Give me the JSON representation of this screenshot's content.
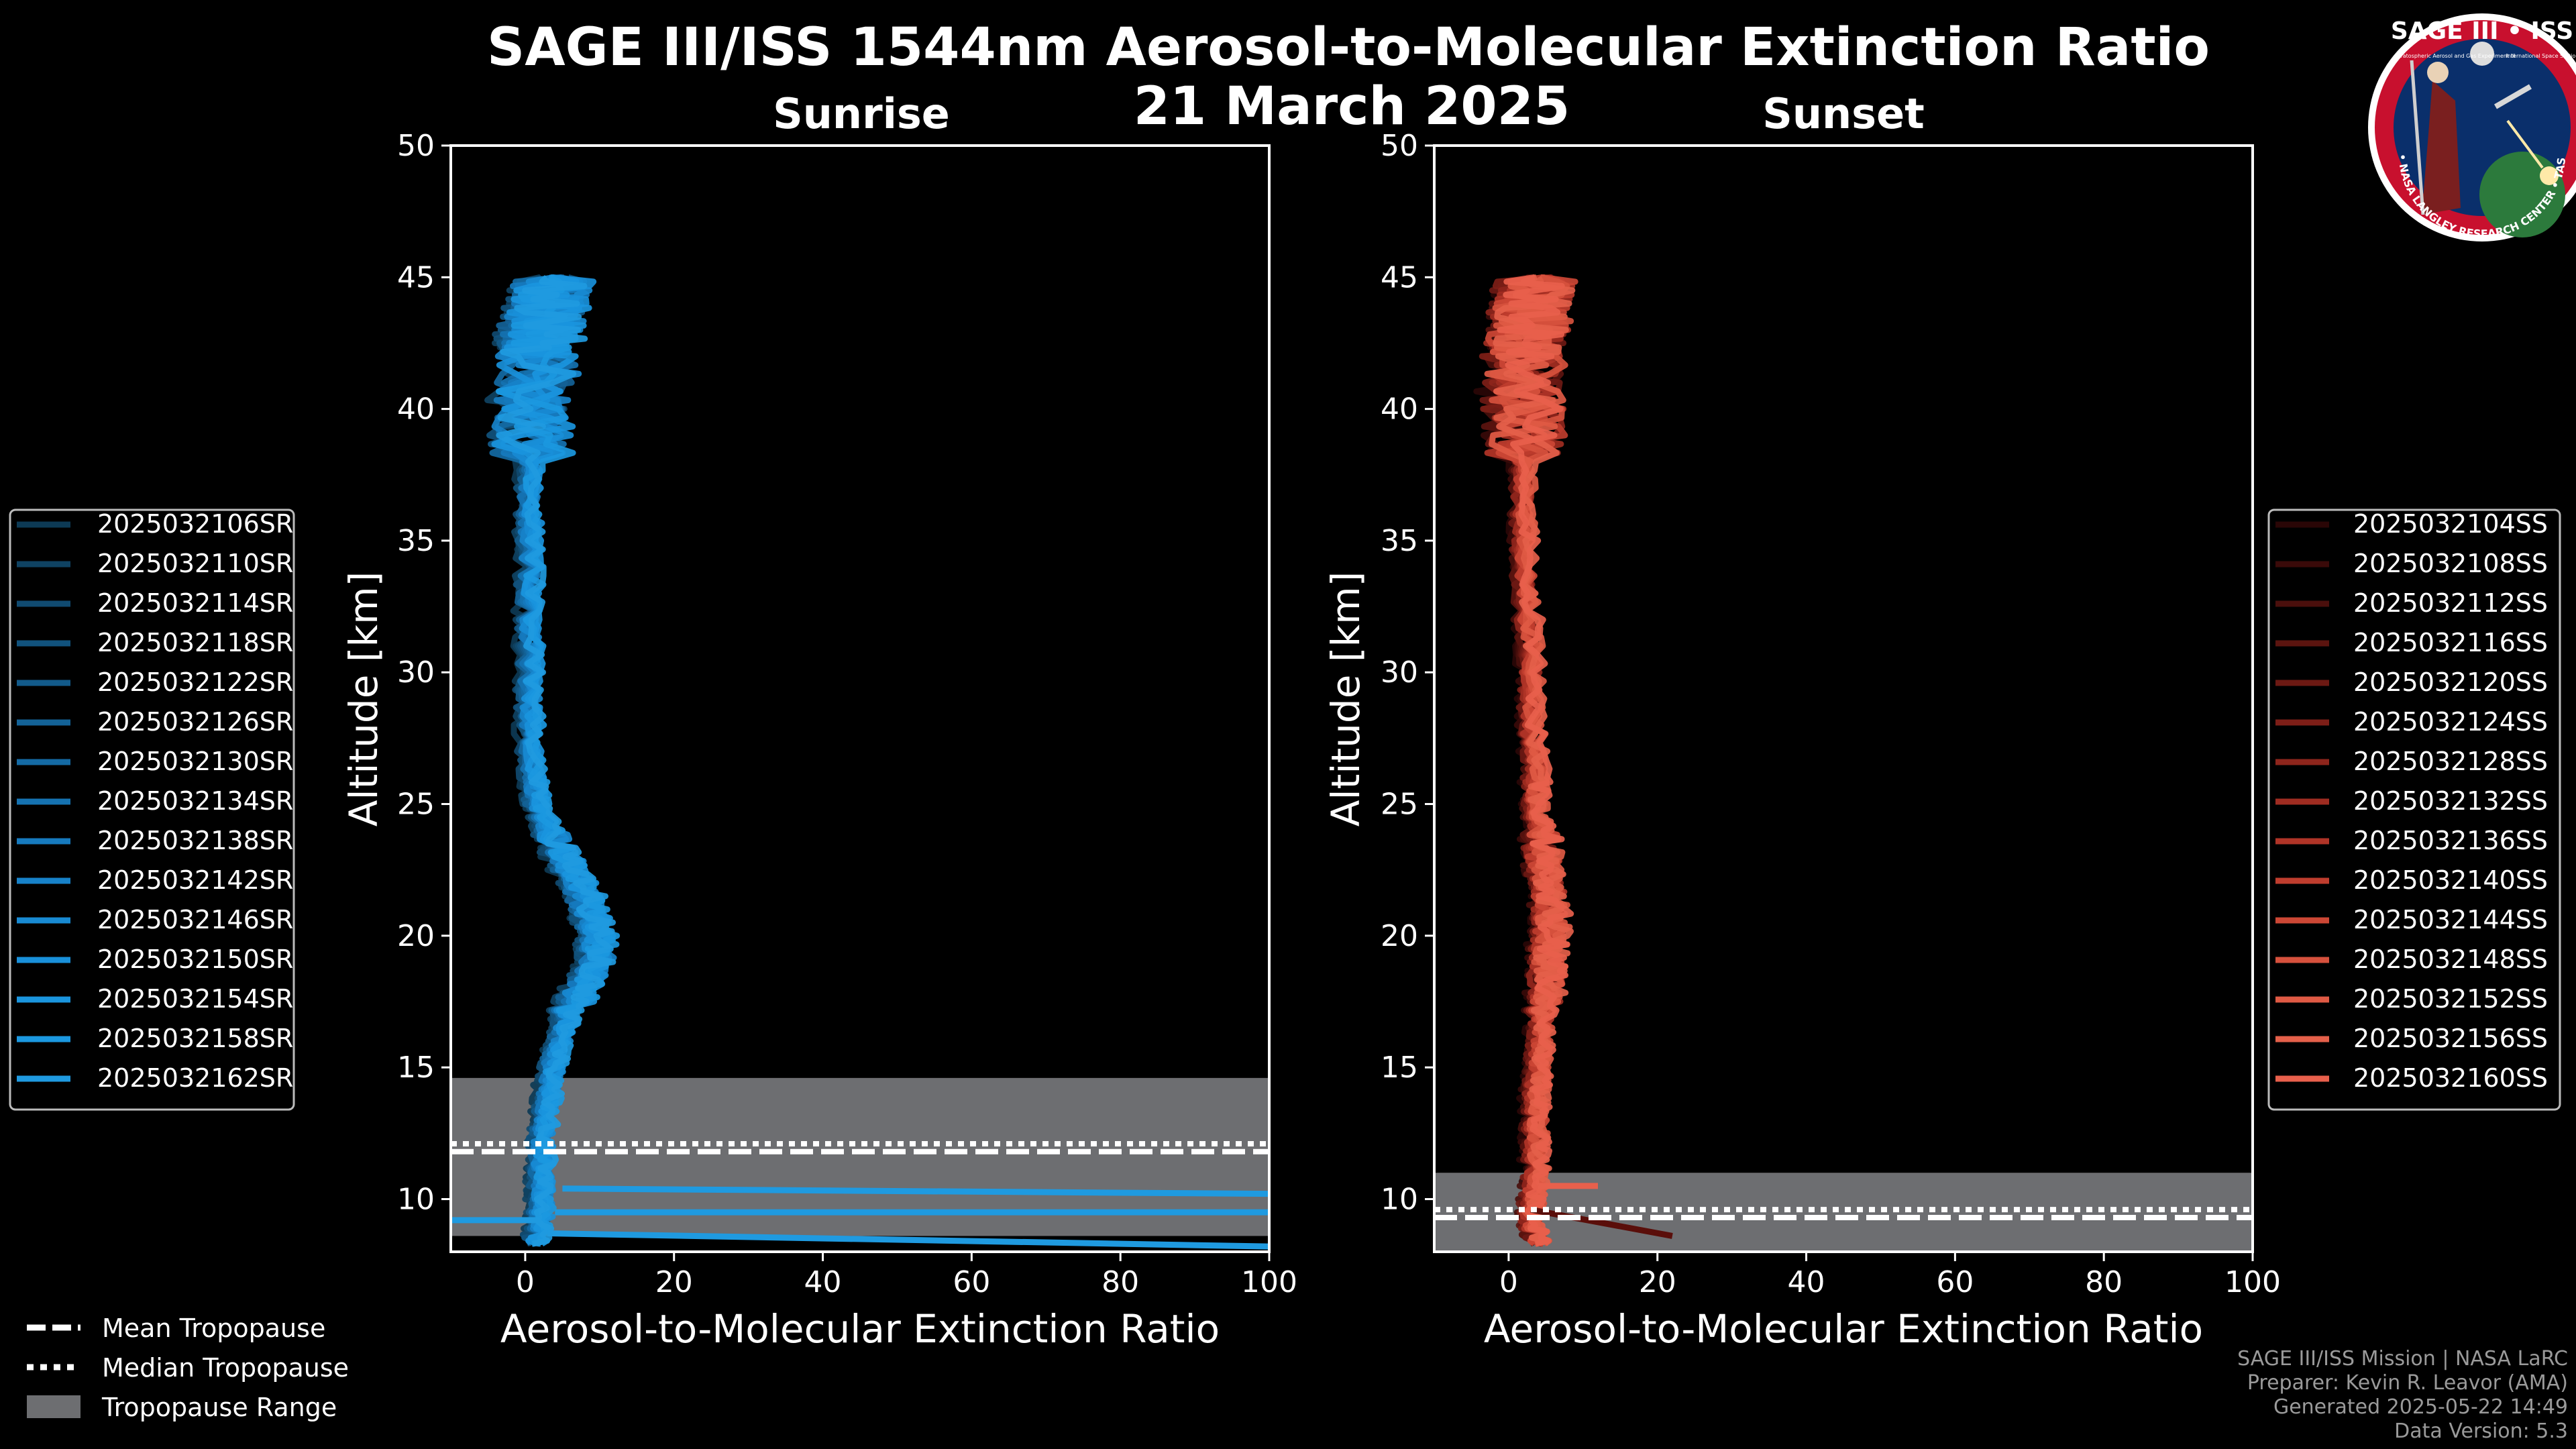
{
  "header": {
    "title": "SAGE III/ISS 1544nm Aerosol-to-Molecular Extinction Ratio",
    "date": "21 March 2025"
  },
  "logo": {
    "title": "SAGE III • ISS",
    "ring_text": "BALL • NASA LANGLEY RESEARCH CENTER • TAS • ESA",
    "subtitle_left": "Stratospheric Aerosol and Gas Experiment III",
    "subtitle_right": "International Space Station",
    "colors": {
      "ring": "#c8102e",
      "field": "#0a2f6b",
      "rim": "#ffffff"
    }
  },
  "colors": {
    "sunrise": "#1f9ae0",
    "sunset": "#e8604c",
    "tropo_range": "#6d6e71",
    "axis": "#ffffff",
    "background": "#000000",
    "legend_border": "#bbbbbb"
  },
  "legend_tropopause": {
    "mean": "Mean Tropopause",
    "median": "Median Tropopause",
    "range": "Tropopause Range"
  },
  "credits": {
    "line1": "SAGE III/ISS Mission | NASA LaRC",
    "line2": "Preparer: Kevin R. Leavor (AMA)",
    "line3": "Generated 2025-05-22 14:49",
    "line4": "Data Version: 5.3"
  },
  "chart_data": [
    {
      "type": "line",
      "title": "Sunrise",
      "xlabel": "Aerosol-to-Molecular Extinction Ratio",
      "ylabel": "Altitude [km]",
      "xlim": [
        -10,
        100
      ],
      "ylim": [
        8,
        50
      ],
      "xticks": [
        0,
        20,
        40,
        60,
        80,
        100
      ],
      "yticks": [
        10,
        15,
        20,
        25,
        30,
        35,
        40,
        45
      ],
      "tropopause": {
        "mean": 11.8,
        "median": 12.1,
        "range": [
          8.6,
          14.6
        ]
      },
      "profile_altitudes_km": [
        8.3,
        9,
        10,
        11,
        12,
        13,
        14,
        15,
        16,
        17,
        18,
        19,
        20,
        21,
        22,
        23,
        24,
        25,
        26,
        28,
        30,
        32,
        34,
        36,
        38,
        40,
        42,
        43,
        44,
        45
      ],
      "mean_profile_ratio": [
        1,
        2,
        2,
        2,
        2,
        2.5,
        3,
        3.5,
        4.5,
        5.5,
        7.5,
        9.5,
        9.5,
        8.5,
        7,
        5,
        3,
        1.5,
        1,
        0.5,
        0.5,
        0.5,
        0.5,
        0.5,
        0.5,
        1,
        1.5,
        2,
        3,
        4
      ],
      "low_level_streaks": [
        {
          "altitude_km": 10.4,
          "start_ratio": 5,
          "end_ratio": 100,
          "end_altitude_km": 10.2
        },
        {
          "altitude_km": 9.5,
          "start_ratio": 4,
          "end_ratio": 100,
          "end_altitude_km": 9.5
        },
        {
          "altitude_km": 9.2,
          "start_ratio": -10,
          "end_ratio": 2,
          "end_altitude_km": 9.2
        },
        {
          "altitude_km": 8.7,
          "start_ratio": 3,
          "end_ratio": 100,
          "end_altitude_km": 8.2
        }
      ],
      "series_colors": [
        "#0d3a55",
        "#0f4262",
        "#104a70",
        "#11527d",
        "#125a8a",
        "#136297",
        "#146aa4",
        "#1572b1",
        "#167abe",
        "#1782c9",
        "#188ad2",
        "#1990da",
        "#1a95de",
        "#1b98e0",
        "#1f9ae0"
      ],
      "series": [
        {
          "name": "2025032106SR"
        },
        {
          "name": "2025032110SR"
        },
        {
          "name": "2025032114SR"
        },
        {
          "name": "2025032118SR"
        },
        {
          "name": "2025032122SR"
        },
        {
          "name": "2025032126SR"
        },
        {
          "name": "2025032130SR"
        },
        {
          "name": "2025032134SR"
        },
        {
          "name": "2025032138SR"
        },
        {
          "name": "2025032142SR"
        },
        {
          "name": "2025032146SR"
        },
        {
          "name": "2025032150SR"
        },
        {
          "name": "2025032154SR"
        },
        {
          "name": "2025032158SR"
        },
        {
          "name": "2025032162SR"
        }
      ]
    },
    {
      "type": "line",
      "title": "Sunset",
      "xlabel": "Aerosol-to-Molecular Extinction Ratio",
      "ylabel": "Altitude [km]",
      "xlim": [
        -10,
        100
      ],
      "ylim": [
        8,
        50
      ],
      "xticks": [
        0,
        20,
        40,
        60,
        80,
        100
      ],
      "yticks": [
        10,
        15,
        20,
        25,
        30,
        35,
        40,
        45
      ],
      "tropopause": {
        "mean": 9.3,
        "median": 9.6,
        "range": [
          8,
          11
        ]
      },
      "profile_altitudes_km": [
        8.3,
        9,
        10,
        11,
        12,
        13,
        14,
        15,
        16,
        17,
        18,
        19,
        20,
        21,
        22,
        23,
        24,
        25,
        26,
        28,
        30,
        32,
        34,
        36,
        38,
        40,
        42,
        43,
        44,
        45
      ],
      "mean_profile_ratio": [
        4,
        3,
        3,
        3.5,
        3.5,
        3.5,
        3.5,
        4,
        4,
        4.5,
        5,
        5,
        5.5,
        5.5,
        5,
        4.5,
        4,
        3.5,
        3.5,
        3,
        3,
        2.5,
        2,
        2,
        2,
        2,
        2,
        2.5,
        3,
        4
      ],
      "low_level_streaks": [
        {
          "altitude_km": 9.6,
          "start_ratio": 3,
          "end_ratio": 22,
          "end_altitude_km": 8.6
        },
        {
          "altitude_km": 10.5,
          "start_ratio": 4,
          "end_ratio": 12,
          "end_altitude_km": 10.5
        }
      ],
      "series_colors": [
        "#2a0606",
        "#3a0a09",
        "#4a0f0c",
        "#5b140f",
        "#6c1913",
        "#7d1e17",
        "#8e251c",
        "#9f2c21",
        "#b03427",
        "#bf3d2e",
        "#cc4735",
        "#d6513d",
        "#df5a44",
        "#e4604a",
        "#e8604c"
      ],
      "series": [
        {
          "name": "2025032104SS"
        },
        {
          "name": "2025032108SS"
        },
        {
          "name": "2025032112SS"
        },
        {
          "name": "2025032116SS"
        },
        {
          "name": "2025032120SS"
        },
        {
          "name": "2025032124SS"
        },
        {
          "name": "2025032128SS"
        },
        {
          "name": "2025032132SS"
        },
        {
          "name": "2025032136SS"
        },
        {
          "name": "2025032140SS"
        },
        {
          "name": "2025032144SS"
        },
        {
          "name": "2025032148SS"
        },
        {
          "name": "2025032152SS"
        },
        {
          "name": "2025032156SS"
        },
        {
          "name": "2025032160SS"
        }
      ]
    }
  ]
}
